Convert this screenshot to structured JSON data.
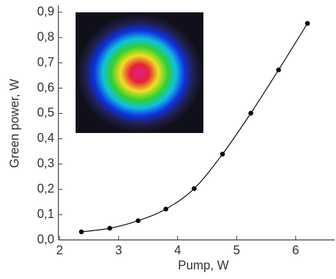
{
  "chart_data": {
    "type": "scatter-line",
    "x_label": "Pump, W",
    "y_label": "Green power, W",
    "x": [
      2.37,
      2.85,
      3.33,
      3.8,
      4.28,
      4.76,
      5.24,
      5.71,
      6.2
    ],
    "values": [
      0.032,
      0.046,
      0.076,
      0.122,
      0.203,
      0.339,
      0.501,
      0.672,
      0.856
    ],
    "color": "#000000",
    "xlim": [
      1.98,
      6.66
    ],
    "xticks": [
      2,
      3,
      4,
      5,
      6
    ],
    "ylim": [
      0,
      0.92
    ],
    "yticks": [
      {
        "value": 0,
        "label": "0,0"
      },
      {
        "value": 0.1,
        "label": "0,1"
      },
      {
        "value": 0.2,
        "label": "0,2"
      },
      {
        "value": 0.3,
        "label": "0,3"
      },
      {
        "value": 0.4,
        "label": "0,4"
      },
      {
        "value": 0.5,
        "label": "0,5"
      },
      {
        "value": 0.6,
        "label": "0,6"
      },
      {
        "value": 0.7,
        "label": "0,7"
      },
      {
        "value": 0.8,
        "label": "0,8"
      },
      {
        "value": 0.9,
        "label": "0,9"
      }
    ]
  }
}
